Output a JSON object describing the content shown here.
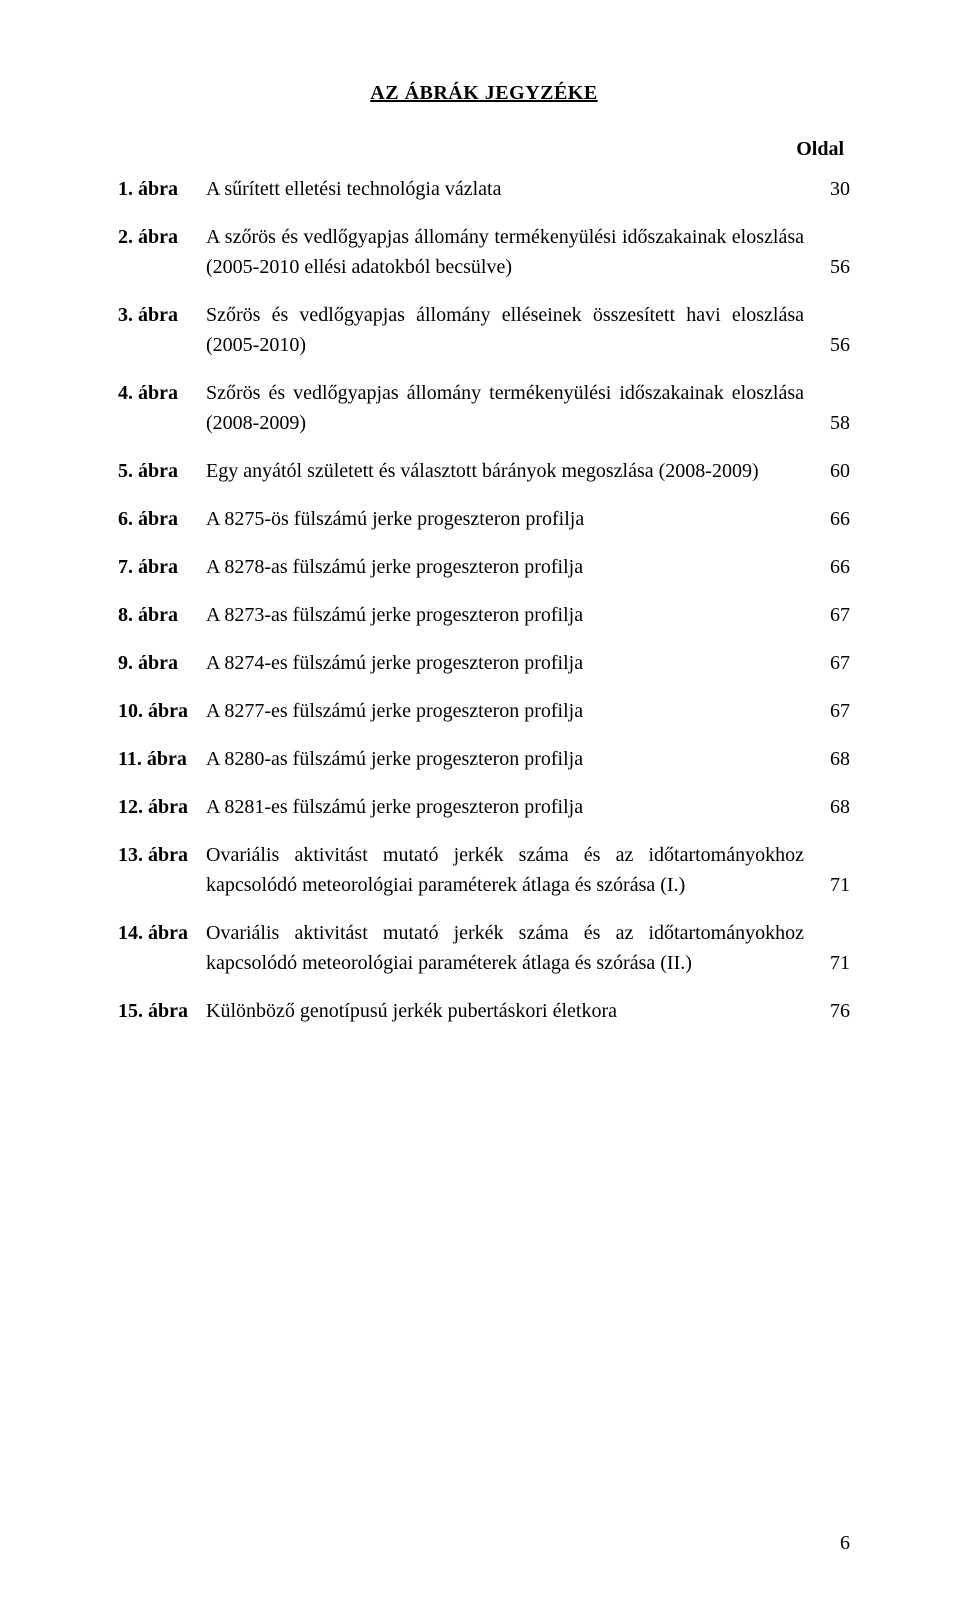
{
  "title": "AZ ÁBRÁK JEGYZÉKE",
  "page_label": "Oldal",
  "footer_page": "6",
  "colors": {
    "text": "#000000",
    "background": "#ffffff"
  },
  "typography": {
    "font_family": "Times New Roman",
    "body_fontsize_pt": 15,
    "title_weight": "bold",
    "num_weight": "bold"
  },
  "entries": [
    {
      "num": "1. ábra",
      "desc": "A sűrített elletési technológia vázlata",
      "page": "30",
      "multi": false
    },
    {
      "num": "2. ábra",
      "desc": "A szőrös és vedlőgyapjas állomány termékenyülési időszakainak eloszlása (2005-2010 ellési adatokból becsülve)",
      "page": "56",
      "multi": true
    },
    {
      "num": "3. ábra",
      "desc": "Szőrös és vedlőgyapjas állomány elléseinek összesített havi eloszlása (2005-2010)",
      "page": "56",
      "multi": true
    },
    {
      "num": "4. ábra",
      "desc": "Szőrös és vedlőgyapjas állomány termékenyülési időszakainak eloszlása (2008-2009)",
      "page": "58",
      "multi": true
    },
    {
      "num": "5. ábra",
      "desc": "Egy anyától született és választott bárányok megoszlása (2008-2009)",
      "page": "60",
      "multi": false
    },
    {
      "num": "6. ábra",
      "desc": "A 8275-ös fülszámú jerke progeszteron profilja",
      "page": "66",
      "multi": false
    },
    {
      "num": "7. ábra",
      "desc": "A 8278-as fülszámú jerke progeszteron profilja",
      "page": "66",
      "multi": false
    },
    {
      "num": "8. ábra",
      "desc": "A 8273-as fülszámú jerke progeszteron profilja",
      "page": "67",
      "multi": false
    },
    {
      "num": "9. ábra",
      "desc": "A 8274-es fülszámú jerke progeszteron profilja",
      "page": "67",
      "multi": false
    },
    {
      "num": "10. ábra",
      "desc": "A 8277-es fülszámú jerke progeszteron profilja",
      "page": "67",
      "multi": false
    },
    {
      "num": "11. ábra",
      "desc": "A 8280-as fülszámú jerke progeszteron profilja",
      "page": "68",
      "multi": false
    },
    {
      "num": "12. ábra",
      "desc": "A 8281-es fülszámú jerke progeszteron profilja",
      "page": "68",
      "multi": false
    },
    {
      "num": "13. ábra",
      "desc": "Ovariális aktivitást mutató jerkék száma és az időtartományokhoz kapcsolódó meteorológiai paraméterek átlaga és szórása (I.)",
      "page": "71",
      "multi": true
    },
    {
      "num": "14. ábra",
      "desc": "Ovariális aktivitást mutató jerkék száma és az időtartományokhoz kapcsolódó meteorológiai paraméterek átlaga és szórása (II.)",
      "page": "71",
      "multi": true
    },
    {
      "num": "15. ábra",
      "desc": "Különböző genotípusú jerkék pubertáskori életkora",
      "page": "76",
      "multi": false
    }
  ]
}
